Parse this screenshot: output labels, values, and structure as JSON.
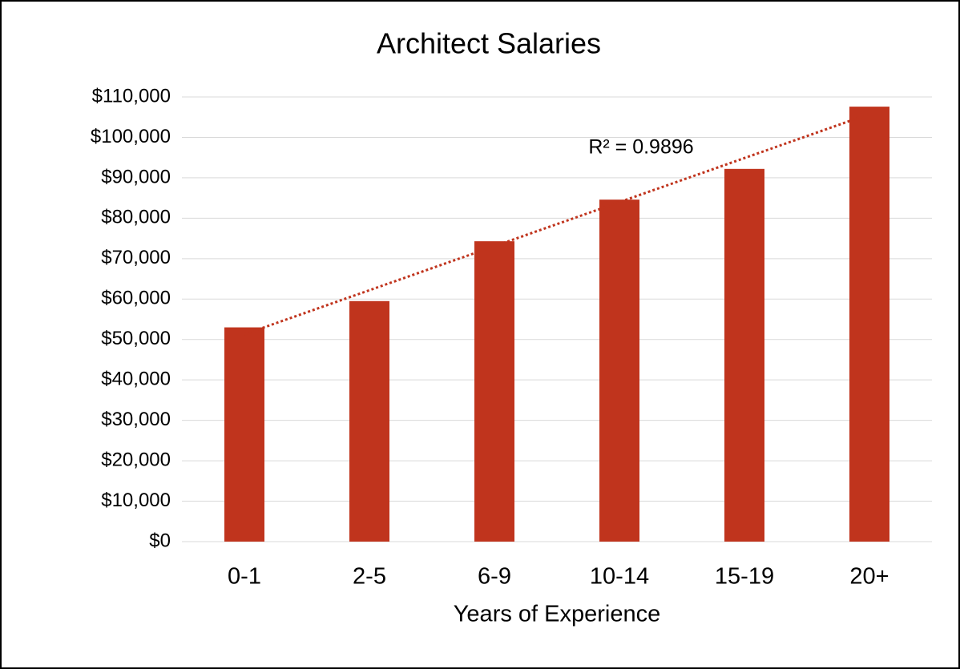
{
  "chart_data": {
    "type": "bar",
    "title": "Architect Salaries",
    "x_label": "Years of Experience",
    "categories": [
      "0-1",
      "2-5",
      "6-9",
      "10-14",
      "15-19",
      "20+"
    ],
    "values": [
      53000,
      59500,
      74300,
      84600,
      92200,
      107600
    ],
    "color": "#c0341d",
    "ylim": [
      0,
      110000
    ],
    "yticks": [
      {
        "value": 0,
        "label": "$0"
      },
      {
        "value": 10000,
        "label": "$10,000"
      },
      {
        "value": 20000,
        "label": "$20,000"
      },
      {
        "value": 30000,
        "label": "$30,000"
      },
      {
        "value": 40000,
        "label": "$40,000"
      },
      {
        "value": 50000,
        "label": "$50,000"
      },
      {
        "value": 60000,
        "label": "$60,000"
      },
      {
        "value": 70000,
        "label": "$70,000"
      },
      {
        "value": 80000,
        "label": "$80,000"
      },
      {
        "value": 90000,
        "label": "$90,000"
      },
      {
        "value": 100000,
        "label": "$100,000"
      },
      {
        "value": 110000,
        "label": "$110,000"
      }
    ],
    "grid": true,
    "trendline": {
      "type": "linear",
      "color": "#c0341d",
      "label": "R² = 0.9896"
    }
  }
}
